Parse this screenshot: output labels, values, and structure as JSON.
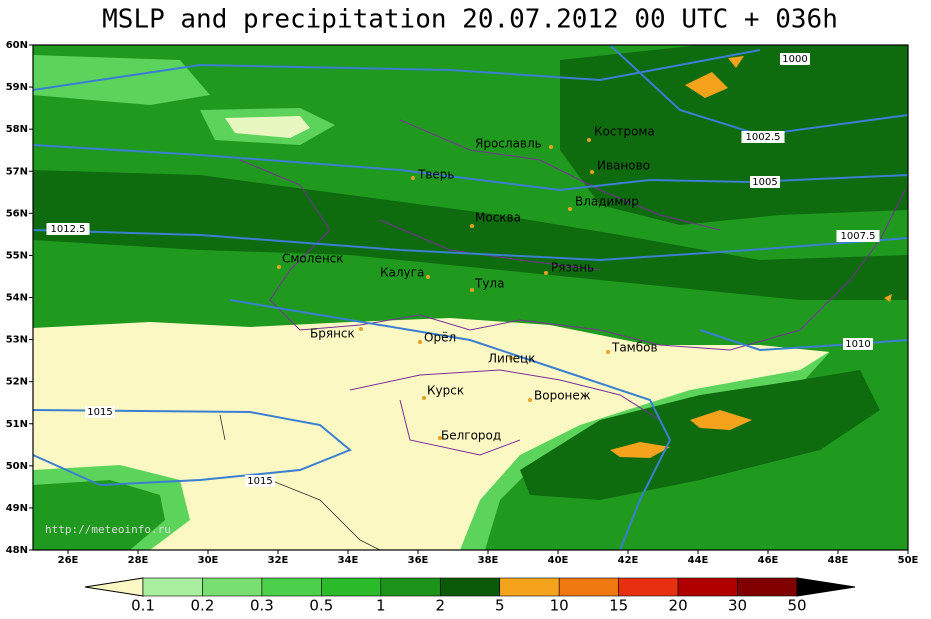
{
  "title": "MSLP and precipitation 20.07.2012 00 UTC + 036h",
  "watermark": "http://meteoinfo.ru",
  "lat_labels": [
    "60N",
    "59N",
    "58N",
    "57N",
    "56N",
    "55N",
    "54N",
    "53N",
    "52N",
    "51N",
    "50N",
    "49N",
    "48N"
  ],
  "lon_labels": [
    "26E",
    "28E",
    "30E",
    "32E",
    "34E",
    "36E",
    "38E",
    "40E",
    "42E",
    "44E",
    "46E",
    "48E",
    "50E"
  ],
  "cities": [
    "Кострома",
    "Ярославль",
    "Иваново",
    "Тверь",
    "Владимир",
    "Москва",
    "Смоленск",
    "Калуга",
    "Рязань",
    "Тула",
    "Брянск",
    "Орёл",
    "Тамбов",
    "Липецк",
    "Курск",
    "Воронеж",
    "Белгород"
  ],
  "isobar_labels": [
    "1000",
    "1002.5",
    "1005",
    "1007.5",
    "1012.5",
    "1010",
    "1015",
    "1015"
  ],
  "legend": {
    "labels": [
      "0.1",
      "0.2",
      "0.3",
      "0.5",
      "1",
      "2",
      "5",
      "10",
      "15",
      "20",
      "30",
      "50"
    ]
  }
}
